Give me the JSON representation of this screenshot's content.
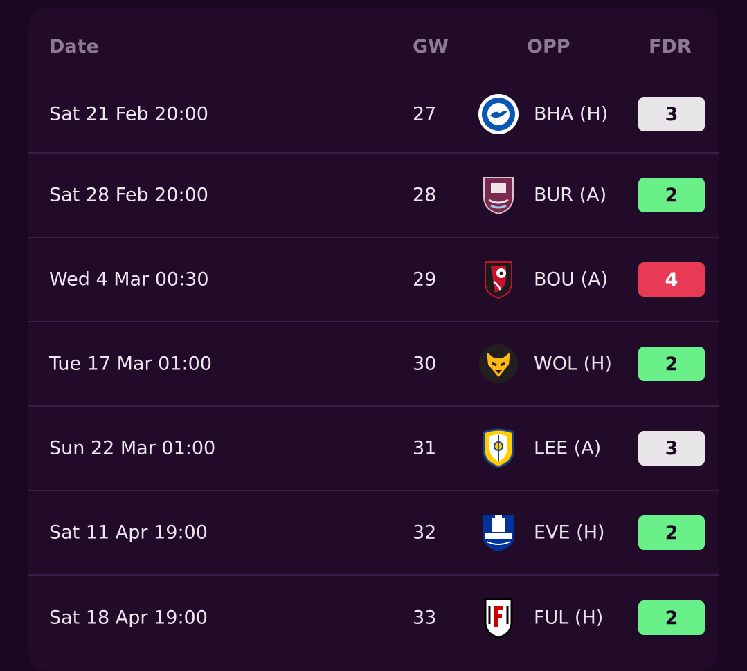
{
  "header": {
    "date": "Date",
    "gw": "GW",
    "opp": "OPP",
    "fdr": "FDR"
  },
  "fixtures": [
    {
      "date": "Sat 21 Feb 20:00",
      "gw": "27",
      "crest": "brighton-crest-icon",
      "opp": "BHA (H)",
      "fdr": "3"
    },
    {
      "date": "Sat 28 Feb 20:00",
      "gw": "28",
      "crest": "burnley-crest-icon",
      "opp": "BUR (A)",
      "fdr": "2"
    },
    {
      "date": "Wed 4 Mar 00:30",
      "gw": "29",
      "crest": "bournemouth-crest-icon",
      "opp": "BOU (A)",
      "fdr": "4"
    },
    {
      "date": "Tue 17 Mar 01:00",
      "gw": "30",
      "crest": "wolves-crest-icon",
      "opp": "WOL (H)",
      "fdr": "2"
    },
    {
      "date": "Sun 22 Mar 01:00",
      "gw": "31",
      "crest": "leeds-crest-icon",
      "opp": "LEE (A)",
      "fdr": "3"
    },
    {
      "date": "Sat 11 Apr 19:00",
      "gw": "32",
      "crest": "everton-crest-icon",
      "opp": "EVE (H)",
      "fdr": "2"
    },
    {
      "date": "Sat 18 Apr 19:00",
      "gw": "33",
      "crest": "fulham-crest-icon",
      "opp": "FUL (H)",
      "fdr": "2"
    }
  ],
  "colors": {
    "fdr_2": "#6af089",
    "fdr_3": "#e8e6e8",
    "fdr_4": "#e83a55"
  }
}
